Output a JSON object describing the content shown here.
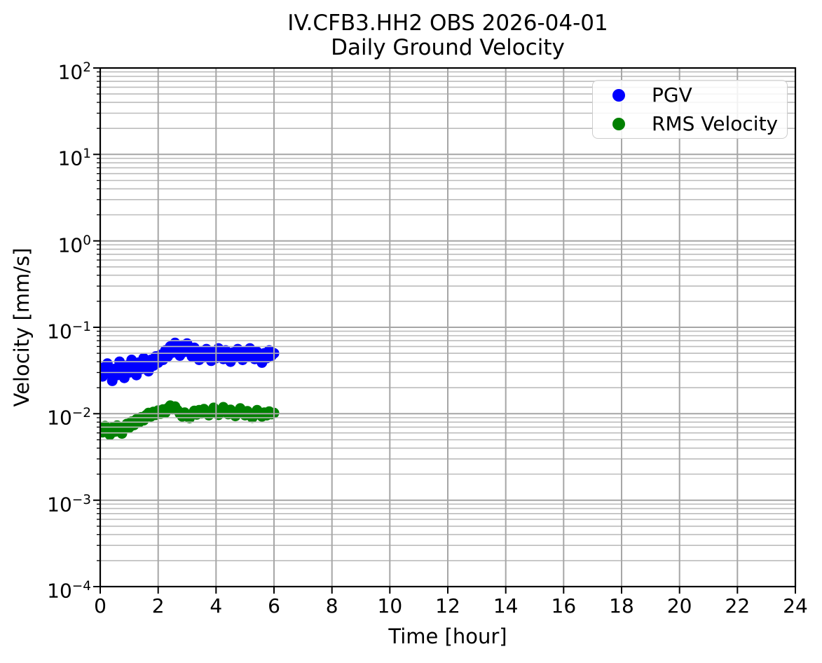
{
  "figure": {
    "title_line1": "IV.CFB3.HH2 OBS 2026-04-01",
    "title_line2": "Daily Ground Velocity",
    "background_color": "#ffffff"
  },
  "axes": {
    "xlabel": "Time [hour]",
    "ylabel": "Velocity [mm/s]",
    "x_ticks": [
      0,
      2,
      4,
      6,
      8,
      10,
      12,
      14,
      16,
      18,
      20,
      22,
      24
    ],
    "y_tick_exponents": [
      2,
      1,
      0,
      -1,
      -2,
      -3,
      -4
    ],
    "grid_major_color": "#a6a6a6",
    "grid_minor_color": "#bcbcbc",
    "spine_color": "#000000",
    "tick_color": "#000000"
  },
  "legend": {
    "position": "upper right",
    "items": [
      {
        "label": "PGV",
        "color": "#0000ff"
      },
      {
        "label": "RMS Velocity",
        "color": "#008000"
      }
    ]
  },
  "chart_data": {
    "type": "scatter",
    "title": "IV.CFB3.HH2 OBS 2026-04-01",
    "subtitle": "Daily Ground Velocity",
    "xlabel": "Time [hour]",
    "ylabel": "Velocity [mm/s]",
    "y_scale": "log",
    "xlim": [
      0,
      24
    ],
    "ylim_log10": [
      -4,
      2
    ],
    "grid": "major+minor, drawn above markers",
    "legend_position": "upper right",
    "x_start_hour": 0,
    "x_step_hour": 0.083333,
    "data_span_hours": [
      0,
      6
    ],
    "series": [
      {
        "name": "PGV",
        "color": "#0000ff",
        "marker": "circle",
        "values_mm_s": [
          0.034,
          0.027,
          0.031,
          0.038,
          0.029,
          0.024,
          0.033,
          0.028,
          0.04,
          0.032,
          0.026,
          0.036,
          0.03,
          0.042,
          0.034,
          0.028,
          0.039,
          0.033,
          0.044,
          0.037,
          0.031,
          0.042,
          0.036,
          0.046,
          0.039,
          0.048,
          0.042,
          0.054,
          0.046,
          0.06,
          0.051,
          0.066,
          0.056,
          0.047,
          0.062,
          0.052,
          0.065,
          0.055,
          0.046,
          0.058,
          0.049,
          0.042,
          0.053,
          0.045,
          0.056,
          0.048,
          0.041,
          0.052,
          0.044,
          0.057,
          0.049,
          0.043,
          0.054,
          0.046,
          0.04,
          0.051,
          0.045,
          0.056,
          0.048,
          0.042,
          0.053,
          0.046,
          0.057,
          0.049,
          0.043,
          0.052,
          0.045,
          0.039,
          0.05,
          0.044,
          0.054,
          0.047,
          0.05
        ]
      },
      {
        "name": "RMS Velocity",
        "color": "#008000",
        "marker": "circle",
        "values_mm_s": [
          0.0068,
          0.0061,
          0.0072,
          0.0064,
          0.0057,
          0.0069,
          0.0062,
          0.0073,
          0.0066,
          0.0059,
          0.0071,
          0.0076,
          0.0069,
          0.0081,
          0.0074,
          0.0086,
          0.0079,
          0.0091,
          0.0084,
          0.0096,
          0.0102,
          0.0093,
          0.0105,
          0.0097,
          0.0109,
          0.01,
          0.0112,
          0.0103,
          0.0116,
          0.0124,
          0.0113,
          0.0121,
          0.011,
          0.01,
          0.0093,
          0.0103,
          0.0096,
          0.0089,
          0.0099,
          0.0108,
          0.0098,
          0.011,
          0.0101,
          0.0113,
          0.0104,
          0.0096,
          0.0107,
          0.0117,
          0.0106,
          0.0097,
          0.0109,
          0.0119,
          0.0108,
          0.0099,
          0.0111,
          0.0102,
          0.0094,
          0.0105,
          0.0115,
          0.0104,
          0.0096,
          0.0107,
          0.0098,
          0.009,
          0.0101,
          0.011,
          0.01,
          0.0093,
          0.0103,
          0.0096,
          0.0106,
          0.0099,
          0.0102
        ]
      }
    ]
  }
}
